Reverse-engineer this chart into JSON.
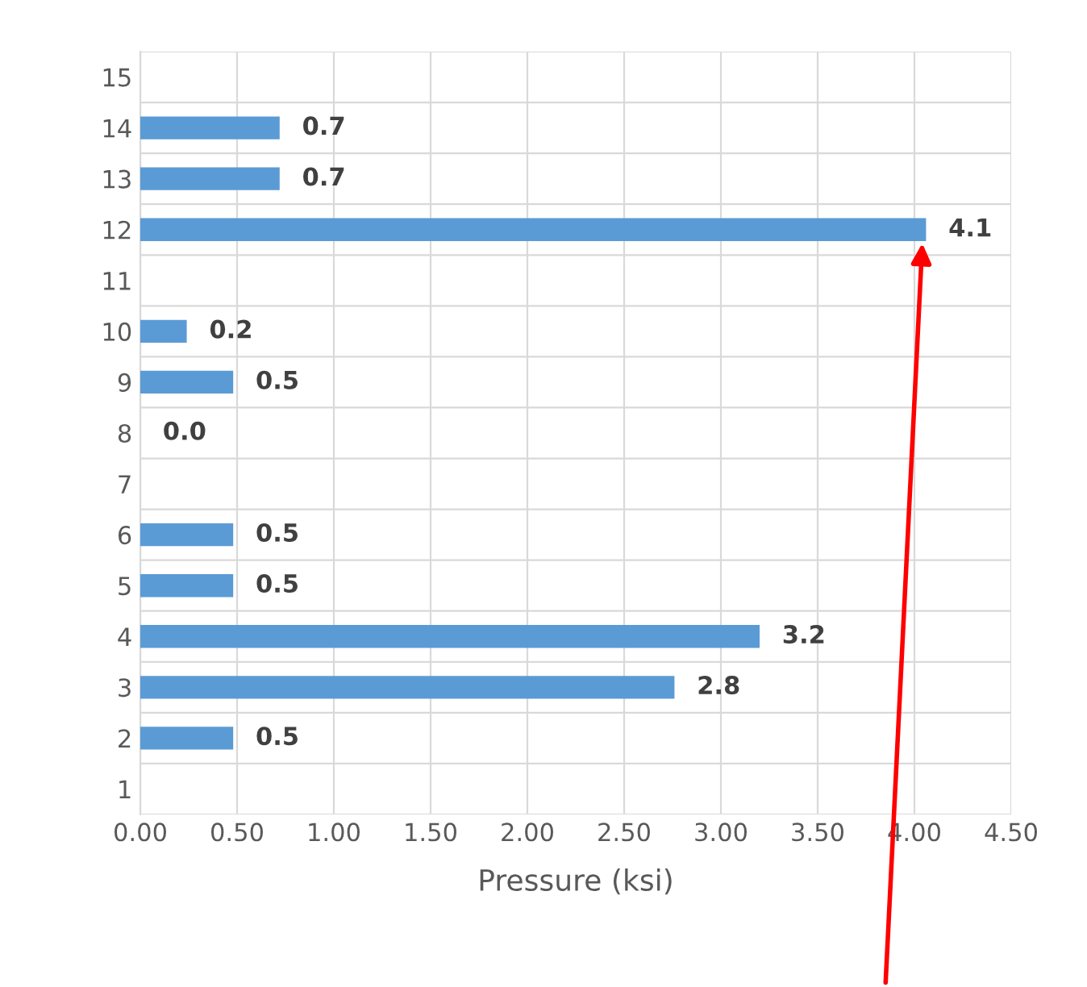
{
  "chart_data": {
    "type": "bar",
    "orientation": "horizontal",
    "xlabel": "Pressure (ksi)",
    "categories": [
      "15",
      "14",
      "13",
      "12",
      "11",
      "10",
      "9",
      "8",
      "7",
      "6",
      "5",
      "4",
      "3",
      "2",
      "1"
    ],
    "values": [
      null,
      0.72,
      0.72,
      4.06,
      null,
      0.24,
      0.48,
      0,
      null,
      0.48,
      0.48,
      3.2,
      2.76,
      0.48,
      null
    ],
    "value_labels": [
      null,
      "0.7",
      "0.7",
      "4.1",
      null,
      "0.2",
      "0.5",
      "0.0",
      null,
      "0.5",
      "0.5",
      "3.2",
      "2.8",
      "0.5",
      null
    ],
    "color": "#5b9bd5",
    "xlim": [
      0,
      4.5
    ],
    "xticks": [
      {
        "value": 0,
        "label": "0.00"
      },
      {
        "value": 0.5,
        "label": "0.50"
      },
      {
        "value": 1,
        "label": "1.00"
      },
      {
        "value": 1.5,
        "label": "1.50"
      },
      {
        "value": 2,
        "label": "2.00"
      },
      {
        "value": 2.5,
        "label": "2.50"
      },
      {
        "value": 3,
        "label": "3.00"
      },
      {
        "value": 3.5,
        "label": "3.50"
      },
      {
        "value": 4,
        "label": "4.00"
      },
      {
        "value": 4.5,
        "label": "4.50"
      }
    ],
    "grid": true,
    "legend": false
  }
}
